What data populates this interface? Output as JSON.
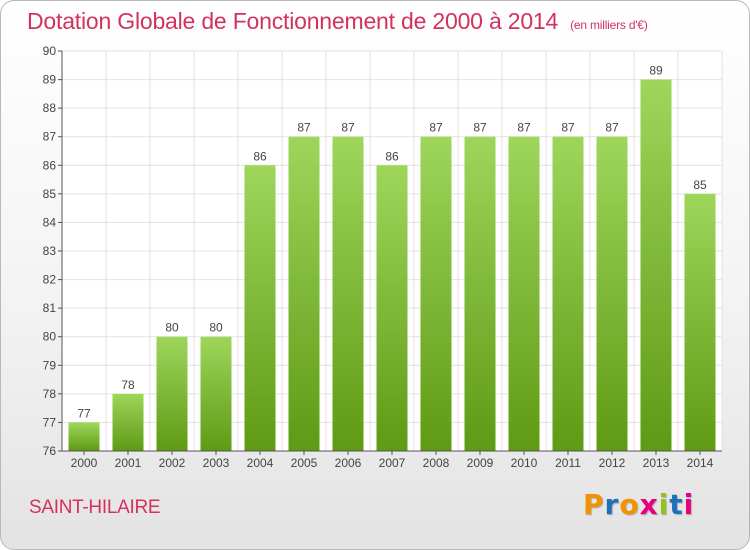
{
  "page": {
    "title": "Dotation Globale de Fonctionnement de 2000 à 2014",
    "unit": "(en milliers d'€)",
    "commune": "SAINT-HILAIRE",
    "logo_text": "Proxiti",
    "colors": {
      "title": "#d3315f",
      "bar_top": "#9ed65a",
      "bar_bottom": "#5f9a14",
      "logo_letters": [
        "#f39200",
        "#1d71b8",
        "#f39200",
        "#e6007e",
        "#95c11f",
        "#1d71b8",
        "#e6007e"
      ]
    }
  },
  "chart_data": {
    "type": "bar",
    "title": "Dotation Globale de Fonctionnement de 2000 à 2014",
    "subtitle": "(en milliers d'€)",
    "categories": [
      "2000",
      "2001",
      "2002",
      "2003",
      "2004",
      "2005",
      "2006",
      "2007",
      "2008",
      "2009",
      "2010",
      "2011",
      "2012",
      "2013",
      "2014"
    ],
    "values": [
      77,
      78,
      80,
      80,
      86,
      87,
      87,
      86,
      87,
      87,
      87,
      87,
      87,
      89,
      85
    ],
    "ylim": [
      76,
      90
    ],
    "yticks": [
      76,
      77,
      78,
      79,
      80,
      81,
      82,
      83,
      84,
      85,
      86,
      87,
      88,
      89,
      90
    ],
    "grid": true,
    "data_labels": true,
    "xlabel": "",
    "ylabel": ""
  }
}
